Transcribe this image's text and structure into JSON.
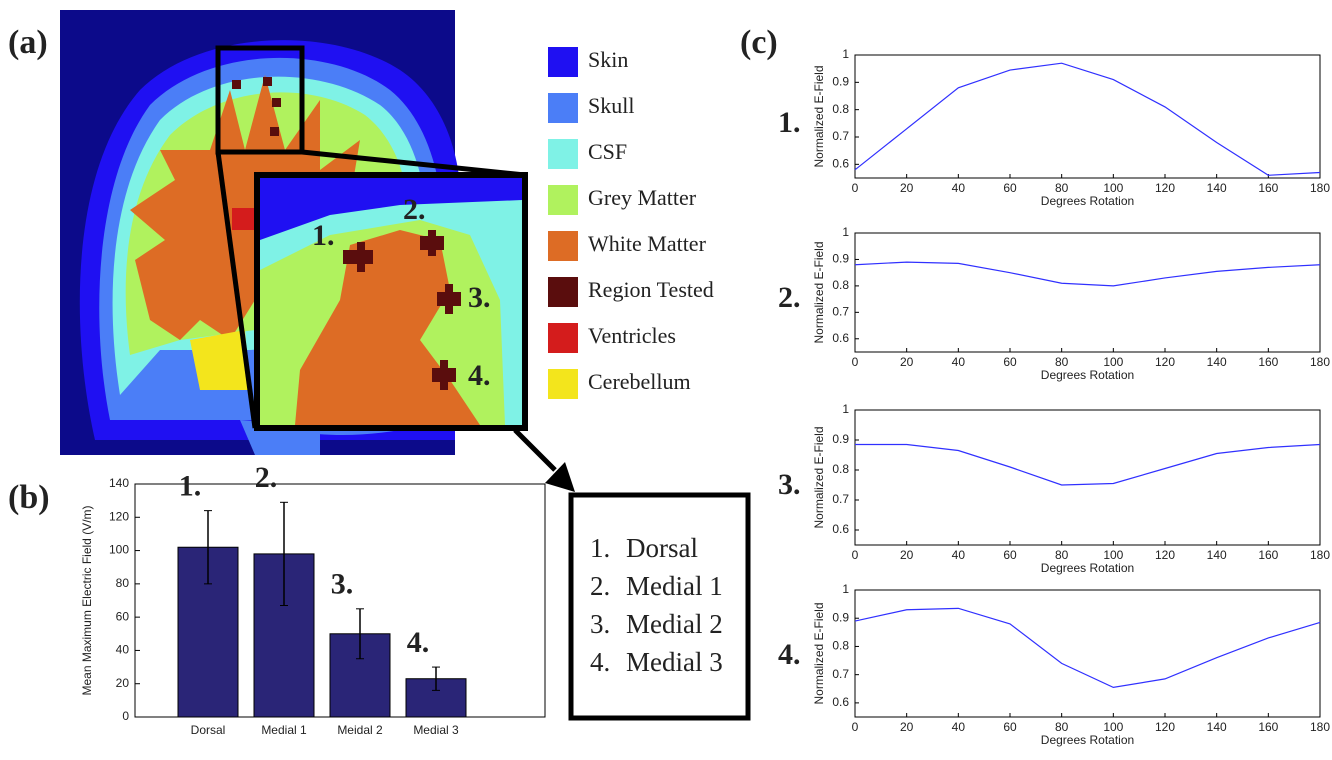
{
  "panel_labels": [
    "(a)",
    "(b)",
    "(c)"
  ],
  "brain_legend": [
    {
      "label": "Skin",
      "color": "#1f10f2"
    },
    {
      "label": "Skull",
      "color": "#4b7ef7"
    },
    {
      "label": "CSF",
      "color": "#7ff2e6"
    },
    {
      "label": "Grey Matter",
      "color": "#b0f25e"
    },
    {
      "label": "White Matter",
      "color": "#dd6c25"
    },
    {
      "label": "Region Tested",
      "color": "#5a0d0d"
    },
    {
      "label": "Ventricles",
      "color": "#d41c1c"
    },
    {
      "label": "Cerebellum",
      "color": "#f3e51c"
    }
  ],
  "brain_markers": [
    "1.",
    "2.",
    "3.",
    "4."
  ],
  "region_list": [
    {
      "number": "1.",
      "name": "Dorsal"
    },
    {
      "number": "2.",
      "name": "Medial 1"
    },
    {
      "number": "3.",
      "name": "Medial 2"
    },
    {
      "number": "4.",
      "name": "Medial 3"
    }
  ],
  "chart_data": [
    {
      "type": "bar",
      "ylabel": "Mean Maximum Electric Field (V/m)",
      "categories": [
        "Dorsal",
        "Medial 1",
        "Meidal 2",
        "Medial 3"
      ],
      "values": [
        102,
        98,
        50,
        23
      ],
      "errors": [
        22,
        31,
        15,
        7
      ],
      "annotations": [
        "1.",
        "2.",
        "3.",
        "4."
      ],
      "color": "#2a2577",
      "ylim": [
        0,
        140
      ],
      "yticks": [
        0,
        20,
        40,
        60,
        80,
        100,
        120,
        140
      ]
    },
    {
      "type": "line",
      "label": "1.",
      "xlabel": "Degrees Rotation",
      "ylabel": "Normalized E-Field",
      "color": "#3030ff",
      "x": [
        0,
        20,
        40,
        60,
        80,
        100,
        120,
        140,
        160,
        180
      ],
      "values": [
        0.58,
        0.73,
        0.88,
        0.945,
        0.97,
        0.91,
        0.81,
        0.68,
        0.56,
        0.57
      ],
      "xlim": [
        0,
        180
      ],
      "xticks": [
        0,
        20,
        40,
        60,
        80,
        100,
        120,
        140,
        160,
        180
      ],
      "ylim": [
        0.55,
        1
      ],
      "yticks": [
        0.6,
        0.7,
        0.8,
        0.9,
        1
      ]
    },
    {
      "type": "line",
      "label": "2.",
      "xlabel": "Degrees Rotation",
      "ylabel": "Normalized E-Field",
      "color": "#3030ff",
      "x": [
        0,
        20,
        40,
        60,
        80,
        100,
        120,
        140,
        160,
        180
      ],
      "values": [
        0.88,
        0.89,
        0.885,
        0.85,
        0.81,
        0.8,
        0.83,
        0.855,
        0.87,
        0.88
      ],
      "xlim": [
        0,
        180
      ],
      "xticks": [
        0,
        20,
        40,
        60,
        80,
        100,
        120,
        140,
        160,
        180
      ],
      "ylim": [
        0.55,
        1
      ],
      "yticks": [
        0.6,
        0.7,
        0.8,
        0.9,
        1
      ]
    },
    {
      "type": "line",
      "label": "3.",
      "xlabel": "Degrees Rotation",
      "ylabel": "Normalized E-Field",
      "color": "#3030ff",
      "x": [
        0,
        20,
        40,
        60,
        80,
        100,
        120,
        140,
        160,
        180
      ],
      "values": [
        0.885,
        0.885,
        0.865,
        0.81,
        0.75,
        0.755,
        0.805,
        0.855,
        0.875,
        0.885
      ],
      "xlim": [
        0,
        180
      ],
      "xticks": [
        0,
        20,
        40,
        60,
        80,
        100,
        120,
        140,
        160,
        180
      ],
      "ylim": [
        0.55,
        1
      ],
      "yticks": [
        0.6,
        0.7,
        0.8,
        0.9,
        1
      ]
    },
    {
      "type": "line",
      "label": "4.",
      "xlabel": "Degrees Rotation",
      "ylabel": "Normalized E-Field",
      "color": "#3030ff",
      "x": [
        0,
        20,
        40,
        60,
        80,
        100,
        120,
        140,
        160,
        180
      ],
      "values": [
        0.89,
        0.93,
        0.935,
        0.88,
        0.74,
        0.655,
        0.685,
        0.76,
        0.83,
        0.885
      ],
      "xlim": [
        0,
        180
      ],
      "xticks": [
        0,
        20,
        40,
        60,
        80,
        100,
        120,
        140,
        160,
        180
      ],
      "ylim": [
        0.55,
        1
      ],
      "yticks": [
        0.6,
        0.7,
        0.8,
        0.9,
        1
      ]
    }
  ]
}
